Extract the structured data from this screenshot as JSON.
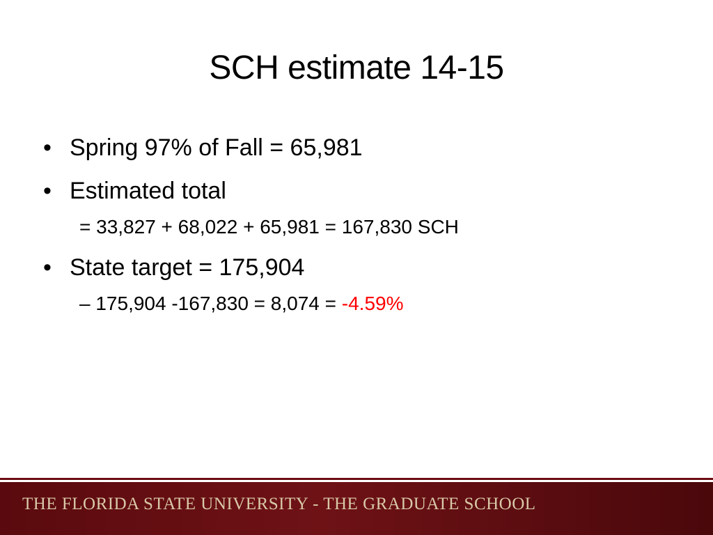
{
  "slide": {
    "title": "SCH estimate 14-15",
    "bullets": [
      {
        "marker": "•",
        "text": "Spring 97% of Fall = 65,981"
      },
      {
        "marker": "•",
        "text": "Estimated total"
      },
      {
        "text": "= 33,827 + 68,022 + 65,981 = 167,830 SCH"
      },
      {
        "marker": "•",
        "text": "State target = 175,904"
      },
      {
        "marker": "–",
        "text_prefix": "175,904 -167,830 = 8,074 = ",
        "text_highlight": "-4.59%"
      }
    ],
    "colors": {
      "highlight": "#ff0000",
      "footer_bg": "#6e1216",
      "footer_text": "#d9c8a8"
    }
  },
  "footer": {
    "text": "THE FLORIDA STATE UNIVERSITY - THE GRADUATE SCHOOL"
  }
}
